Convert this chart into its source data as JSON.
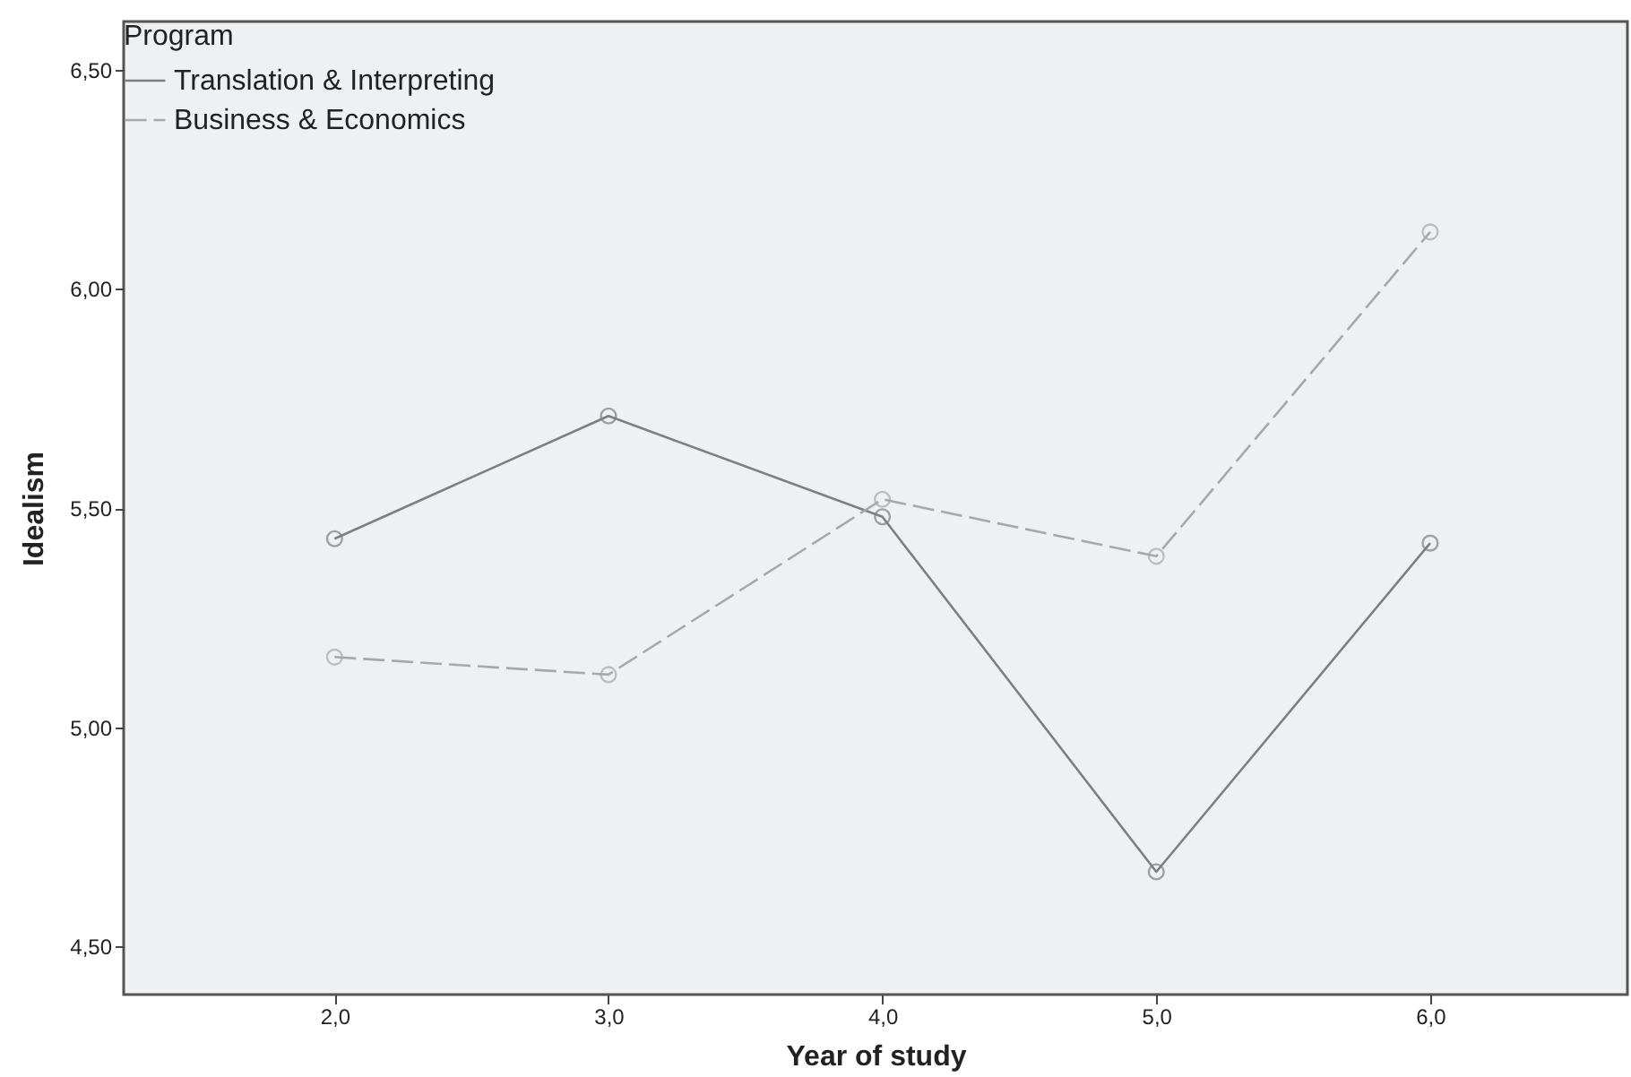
{
  "chart_data": {
    "type": "line",
    "xlabel": "Year of study",
    "ylabel": "Idealism",
    "legend_title": "Program",
    "x": [
      2.0,
      3.0,
      4.0,
      5.0,
      6.0
    ],
    "series": [
      {
        "name": "Translation & Interpreting",
        "color": "#7f7f7f",
        "line_style": "solid",
        "values": [
          5.43,
          5.71,
          5.48,
          4.67,
          5.42
        ]
      },
      {
        "name": "Business & Economics",
        "color": "#a8a8a8",
        "line_style": "dashed",
        "values": [
          5.16,
          5.12,
          5.52,
          5.39,
          6.13
        ]
      }
    ],
    "xlim": [
      1.23,
      6.72
    ],
    "xticks": [
      {
        "value": 2.0,
        "label": "2,0"
      },
      {
        "value": 3.0,
        "label": "3,0"
      },
      {
        "value": 4.0,
        "label": "4,0"
      },
      {
        "value": 5.0,
        "label": "5,0"
      },
      {
        "value": 6.0,
        "label": "6,0"
      }
    ],
    "ylim": [
      4.39,
      6.61
    ],
    "yticks": [
      {
        "value": 4.5,
        "label": "4,50"
      },
      {
        "value": 5.0,
        "label": "5,00"
      },
      {
        "value": 5.5,
        "label": "5,50"
      },
      {
        "value": 6.0,
        "label": "6,00"
      },
      {
        "value": 6.5,
        "label": "6,50"
      }
    ],
    "marker": "circle",
    "grid": false,
    "legend": "top left"
  }
}
